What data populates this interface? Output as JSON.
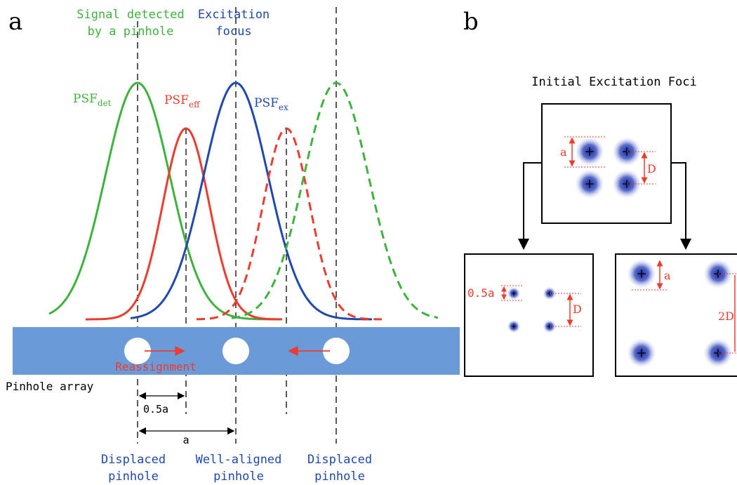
{
  "panel_a": {
    "label": "a",
    "signal_title": {
      "line1": "Signal detected",
      "line2": "by a pinhole"
    },
    "excitation_title": {
      "line1": "Excitation",
      "line2": "focus"
    },
    "psf_det": {
      "base": "PSF",
      "sub": "det"
    },
    "psf_eff": {
      "base": "PSF",
      "sub": "eff"
    },
    "psf_ex": {
      "base": "PSF",
      "sub": "ex"
    },
    "reassignment": "Reassignment",
    "pinhole_array": "Pinhole array",
    "dim_half": "0.5a",
    "dim_full": "a",
    "bottom_labels": {
      "left": {
        "line1": "Displaced",
        "line2": "pinhole"
      },
      "center": {
        "line1": "Well-aligned",
        "line2": "pinhole"
      },
      "right": {
        "line1": "Displaced",
        "line2": "pinhole"
      }
    },
    "colors": {
      "green": "#3cb43c",
      "red": "#ee3b2d",
      "blue": "#1f48b0",
      "bar": "#6a9bd8"
    }
  },
  "panel_b": {
    "label": "b",
    "title": "Initial Excitation Foci",
    "top_a": "a",
    "top_d": "D",
    "left_half_a": "0.5a",
    "left_d": "D",
    "right_a": "a",
    "right_2d": "2D"
  }
}
